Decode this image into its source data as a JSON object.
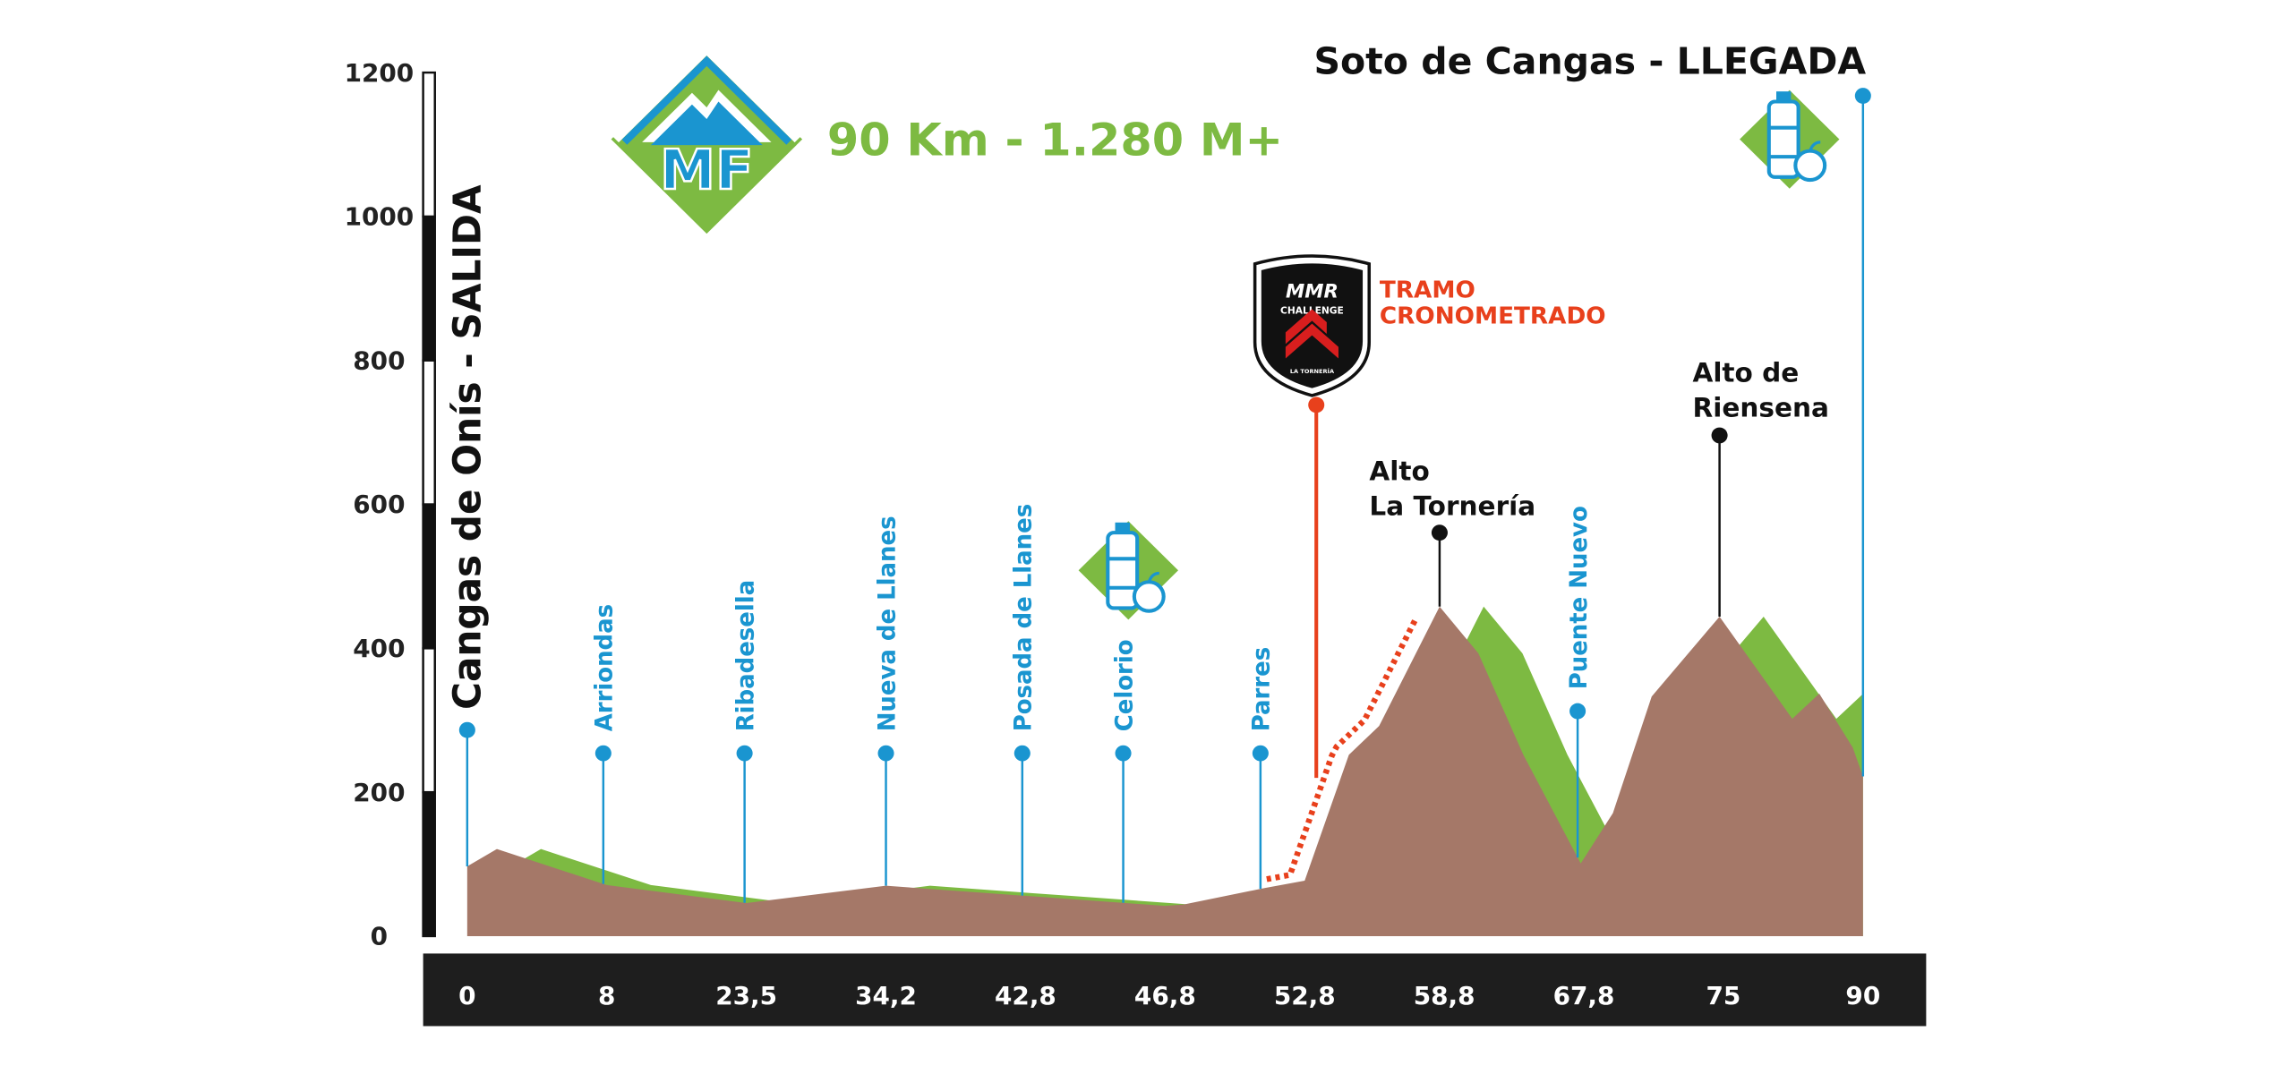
{
  "chart_data": {
    "type": "area",
    "title": "90 Km - 1.280 M+",
    "logo_text": "MF",
    "ylim": [
      0,
      1200
    ],
    "yticks": [
      0,
      200,
      400,
      600,
      800,
      1000,
      1200
    ],
    "xlim": [
      0,
      90
    ],
    "xticks": [
      {
        "value": 0,
        "label": "0"
      },
      {
        "value": 8,
        "label": "8"
      },
      {
        "value": 23.5,
        "label": "23,5"
      },
      {
        "value": 34.2,
        "label": "34,2"
      },
      {
        "value": 42.8,
        "label": "42,8"
      },
      {
        "value": 46.8,
        "label": "46,8"
      },
      {
        "value": 52.8,
        "label": "52,8"
      },
      {
        "value": 58.8,
        "label": "58,8"
      },
      {
        "value": 67.8,
        "label": "67,8"
      },
      {
        "value": 75,
        "label": "75"
      },
      {
        "value": 90,
        "label": "90"
      }
    ],
    "x": [
      0,
      1.7,
      8,
      23.5,
      34.2,
      42.8,
      46.8,
      47.6,
      51.1,
      52.8,
      54.7,
      56,
      58.6,
      61,
      63.9,
      67.6,
      69.3,
      71.3,
      74.8,
      82.4,
      85.3,
      88.9,
      90
    ],
    "values": [
      97,
      121,
      71,
      46,
      70,
      56,
      42,
      44,
      67,
      77,
      252,
      292,
      458,
      393,
      252,
      101,
      171,
      333,
      444,
      302,
      337,
      262,
      222
    ],
    "color": "#a57868",
    "shade_color": "#7dba42",
    "waypoints": [
      {
        "label": "Cangas de Onís - SALIDA",
        "x": 0
      },
      {
        "label": "Arriondas",
        "x": 7.8
      },
      {
        "label": "Ribadesella",
        "x": 23.3
      },
      {
        "label": "Nueva de Llanes",
        "x": 34.2
      },
      {
        "label": "Posada de Llanes",
        "x": 42.6
      },
      {
        "label": "Celorio",
        "x": 45.6
      },
      {
        "label": "Parres",
        "x": 50.9
      },
      {
        "label": "Puente Nuevo",
        "x": 67.4
      },
      {
        "label": "Soto de Cangas - LLEGADA",
        "x": 90
      }
    ],
    "peaks": [
      {
        "label": [
          "Alto",
          "La Tornería"
        ],
        "x": 58.6
      },
      {
        "label": [
          "Alto de",
          "Riensena"
        ],
        "x": 74.8
      }
    ],
    "timed_section": {
      "label": [
        "TRAMO",
        "CRONOMETRADO"
      ],
      "x": 53.3,
      "color": "#e8401c"
    },
    "badge": {
      "brand": "MMR",
      "line": "CHALLENGE",
      "place": "LA TORNERÍA"
    }
  }
}
